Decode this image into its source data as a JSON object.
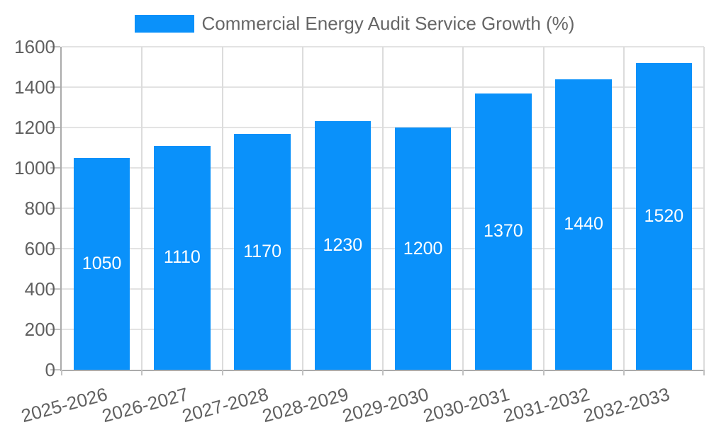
{
  "legend": {
    "label": "Commercial Energy Audit Service Growth (%)"
  },
  "colors": {
    "bar": "#0a91fa",
    "grid_horizontal": "#e3e3e3",
    "grid_vertical": "#dcdcdc",
    "axis": "#ababab",
    "tick": "#c2c2c2",
    "tick_label": "#616161",
    "value_label": "#ffffff",
    "legend_text": "#666666",
    "background": "#ffffff"
  },
  "chart_data": {
    "type": "bar",
    "title": "",
    "series_name": "Commercial Energy Audit Service Growth (%)",
    "categories": [
      "2025-2026",
      "2026-2027",
      "2027-2028",
      "2028-2029",
      "2029-2030",
      "2030-2031",
      "2031-2032",
      "2032-2033"
    ],
    "values": [
      1050,
      1110,
      1170,
      1230,
      1200,
      1370,
      1440,
      1520
    ],
    "bar_labels": [
      "1050",
      "1110",
      "1170",
      "1230",
      "1200",
      "1370",
      "1440",
      "1520"
    ],
    "xlabel": "",
    "ylabel": "",
    "ylim": [
      0,
      1600
    ],
    "ytick_step": 200,
    "yticks": [
      0,
      200,
      400,
      600,
      800,
      1000,
      1200,
      1400,
      1600
    ],
    "grid": true,
    "legend_position": "top-center",
    "x_label_rotation_deg": -15,
    "bar_label_position": "center-inside"
  }
}
